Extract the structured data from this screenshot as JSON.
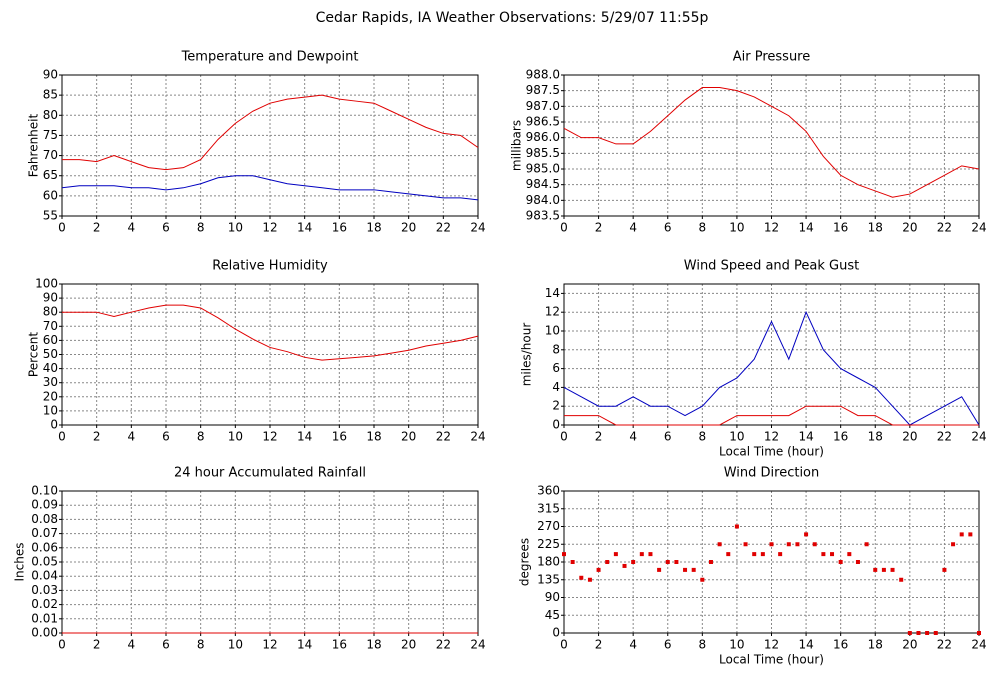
{
  "title": "Cedar Rapids, IA Weather Observations: 5/29/07 11:55p",
  "chart_data": [
    {
      "type": "line",
      "title": "Temperature and Dewpoint",
      "ylabel": "Fahrenheit",
      "x": [
        0,
        1,
        2,
        3,
        4,
        5,
        6,
        7,
        8,
        9,
        10,
        11,
        12,
        13,
        14,
        15,
        16,
        17,
        18,
        19,
        20,
        21,
        22,
        23,
        24
      ],
      "series": [
        {
          "color": "#e00000",
          "values": [
            69,
            69,
            68.5,
            70,
            68.5,
            67,
            66.5,
            67,
            69,
            74,
            78,
            81,
            83,
            84,
            84.5,
            85,
            84,
            83.5,
            83,
            81,
            79,
            77,
            75.5,
            75,
            72
          ]
        },
        {
          "color": "#0000c0",
          "values": [
            62,
            62.5,
            62.5,
            62.5,
            62,
            62,
            61.5,
            62,
            63,
            64.5,
            65,
            65,
            64,
            63,
            62.5,
            62,
            61.5,
            61.5,
            61.5,
            61,
            60.5,
            60,
            59.5,
            59.5,
            59
          ]
        }
      ],
      "xlim": [
        0,
        24
      ],
      "xticks": [
        0,
        2,
        4,
        6,
        8,
        10,
        12,
        14,
        16,
        18,
        20,
        22,
        24
      ],
      "ylim": [
        55,
        90
      ],
      "yticks": [
        55,
        60,
        65,
        70,
        75,
        80,
        85,
        90
      ],
      "grid": true
    },
    {
      "type": "line",
      "title": "Air Pressure",
      "ylabel": "millibars",
      "x": [
        0,
        1,
        2,
        3,
        4,
        5,
        6,
        7,
        8,
        9,
        10,
        11,
        12,
        13,
        14,
        15,
        16,
        17,
        18,
        19,
        20,
        21,
        22,
        23,
        24
      ],
      "series": [
        {
          "color": "#e00000",
          "values": [
            986.3,
            986.0,
            986.0,
            985.8,
            985.8,
            986.2,
            986.7,
            987.2,
            987.6,
            987.6,
            987.5,
            987.3,
            987.0,
            986.7,
            986.2,
            985.4,
            984.8,
            984.5,
            984.3,
            984.1,
            984.2,
            984.5,
            984.8,
            985.1,
            985.0
          ]
        }
      ],
      "xlim": [
        0,
        24
      ],
      "xticks": [
        0,
        2,
        4,
        6,
        8,
        10,
        12,
        14,
        16,
        18,
        20,
        22,
        24
      ],
      "ylim": [
        983.5,
        988
      ],
      "yticks": [
        983.5,
        {
          "value": 984,
          "label": "984.0"
        },
        984.5,
        {
          "value": 985,
          "label": "985.0"
        },
        985.5,
        {
          "value": 986,
          "label": "986.0"
        },
        986.5,
        {
          "value": 987,
          "label": "987.0"
        },
        987.5,
        {
          "value": 988,
          "label": "988.0"
        }
      ],
      "grid": true
    },
    {
      "type": "line",
      "title": "Relative Humidity",
      "ylabel": "Percent",
      "x": [
        0,
        1,
        2,
        3,
        4,
        5,
        6,
        7,
        8,
        9,
        10,
        11,
        12,
        13,
        14,
        15,
        16,
        17,
        18,
        19,
        20,
        21,
        22,
        23,
        24
      ],
      "series": [
        {
          "color": "#e00000",
          "values": [
            80,
            80,
            80,
            77,
            80,
            83,
            85,
            85,
            83,
            76,
            68,
            61,
            55,
            52,
            48,
            46,
            47,
            48,
            49,
            51,
            53,
            56,
            58,
            60,
            63
          ]
        }
      ],
      "xlim": [
        0,
        24
      ],
      "xticks": [
        0,
        2,
        4,
        6,
        8,
        10,
        12,
        14,
        16,
        18,
        20,
        22,
        24
      ],
      "ylim": [
        0,
        100
      ],
      "yticks": [
        0,
        10,
        20,
        30,
        40,
        50,
        60,
        70,
        80,
        90,
        100
      ],
      "grid": true
    },
    {
      "type": "line",
      "title": "Wind Speed and Peak Gust",
      "ylabel": "miles/hour",
      "xlabel": "Local Time (hour)",
      "x": [
        0,
        1,
        2,
        3,
        4,
        5,
        6,
        7,
        8,
        9,
        10,
        11,
        12,
        13,
        14,
        15,
        16,
        17,
        18,
        19,
        20,
        21,
        22,
        23,
        24
      ],
      "series": [
        {
          "color": "#0000c0",
          "values": [
            4,
            3,
            2,
            2,
            3,
            2,
            2,
            1,
            2,
            4,
            5,
            7,
            11,
            7,
            12,
            8,
            6,
            5,
            4,
            2,
            0,
            1,
            2,
            3,
            0
          ]
        },
        {
          "color": "#e00000",
          "values": [
            1,
            1,
            1,
            0,
            0,
            0,
            0,
            0,
            0,
            0,
            1,
            1,
            1,
            1,
            2,
            2,
            2,
            1,
            1,
            0,
            0,
            0,
            0,
            0,
            0
          ]
        }
      ],
      "xlim": [
        0,
        24
      ],
      "xticks": [
        0,
        2,
        4,
        6,
        8,
        10,
        12,
        14,
        16,
        18,
        20,
        22,
        24
      ],
      "ylim": [
        0,
        15
      ],
      "yticks": [
        0,
        2,
        4,
        6,
        8,
        10,
        12,
        14
      ],
      "grid": true
    },
    {
      "type": "line",
      "title": "24 hour Accumulated Rainfall",
      "ylabel": "Inches",
      "x": [
        0,
        24
      ],
      "series": [
        {
          "color": "#e00000",
          "values": [
            0,
            0
          ]
        }
      ],
      "xlim": [
        0,
        24
      ],
      "xticks": [
        0,
        2,
        4,
        6,
        8,
        10,
        12,
        14,
        16,
        18,
        20,
        22,
        24
      ],
      "ylim": [
        0,
        0.1
      ],
      "yticks": [
        {
          "value": 0,
          "label": "0.00"
        },
        0.01,
        0.02,
        0.03,
        0.04,
        0.05,
        0.06,
        0.07,
        0.08,
        0.09,
        {
          "value": 0.1,
          "label": "0.10"
        }
      ],
      "grid": true
    },
    {
      "type": "scatter",
      "title": "Wind Direction",
      "ylabel": "degrees",
      "xlabel": "Local Time (hour)",
      "x": [
        0,
        0.5,
        1,
        1.5,
        2,
        2.5,
        3,
        3.5,
        4,
        4.5,
        5,
        5.5,
        6,
        6.5,
        7,
        7.5,
        8,
        8.5,
        9,
        9.5,
        10,
        10.5,
        11,
        11.5,
        12,
        12.5,
        13,
        13.5,
        14,
        14.5,
        15,
        15.5,
        16,
        16.5,
        17,
        17.5,
        18,
        18.5,
        19,
        19.5,
        20,
        20.5,
        21,
        21.5,
        22,
        22.5,
        23,
        23.5,
        24
      ],
      "series": [
        {
          "color": "#e00000",
          "values": [
            200,
            180,
            140,
            135,
            160,
            180,
            200,
            170,
            180,
            200,
            200,
            160,
            180,
            180,
            160,
            160,
            135,
            180,
            225,
            200,
            270,
            225,
            200,
            200,
            225,
            200,
            225,
            225,
            250,
            225,
            200,
            200,
            180,
            200,
            180,
            225,
            160,
            160,
            160,
            135,
            0,
            0,
            0,
            0,
            160,
            225,
            250,
            250,
            0
          ]
        }
      ],
      "xlim": [
        0,
        24
      ],
      "xticks": [
        0,
        2,
        4,
        6,
        8,
        10,
        12,
        14,
        16,
        18,
        20,
        22,
        24
      ],
      "ylim": [
        0,
        360
      ],
      "yticks": [
        0,
        45,
        90,
        135,
        180,
        225,
        270,
        315,
        360
      ],
      "grid": true
    }
  ]
}
